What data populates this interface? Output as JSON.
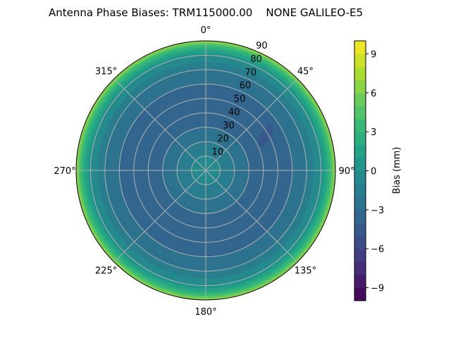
{
  "chart_data": {
    "type": "polar-contour",
    "title": "Antenna Phase Biases: TRM115000.00    NONE GALILEO-E5",
    "theta_direction": "clockwise",
    "theta_zero": "north",
    "theta_ticks": [
      "0°",
      "45°",
      "90°",
      "135°",
      "180°",
      "225°",
      "270°",
      "315°"
    ],
    "theta_values": [
      0,
      45,
      90,
      135,
      180,
      225,
      270,
      315
    ],
    "r_ticks": [
      "10",
      "20",
      "30",
      "40",
      "50",
      "60",
      "70",
      "80",
      "90"
    ],
    "r_values": [
      10,
      20,
      30,
      40,
      50,
      60,
      70,
      80,
      90
    ],
    "rlim": [
      0,
      90
    ],
    "grid": true,
    "radial_profile": {
      "zenith_deg": [
        0,
        10,
        20,
        30,
        40,
        50,
        60,
        70,
        75,
        80,
        84,
        87,
        89,
        90
      ],
      "bias_mm": [
        -0.5,
        -1,
        -2,
        -3,
        -3.6,
        -3.6,
        -3,
        -2,
        -1,
        0,
        2,
        4,
        6,
        7
      ]
    },
    "local_minimum": {
      "azimuth_deg": 60,
      "zenith_deg": 48,
      "bias_mm": -4.5
    },
    "colorbar": {
      "label": "Bias (mm)",
      "range": [
        -10,
        10
      ],
      "levels_step": 1,
      "colormap": "viridis",
      "ticks": [
        "−9",
        "−6",
        "−3",
        "0",
        "3",
        "6",
        "9"
      ],
      "tick_values": [
        -9,
        -6,
        -3,
        0,
        3,
        6,
        9
      ]
    }
  }
}
